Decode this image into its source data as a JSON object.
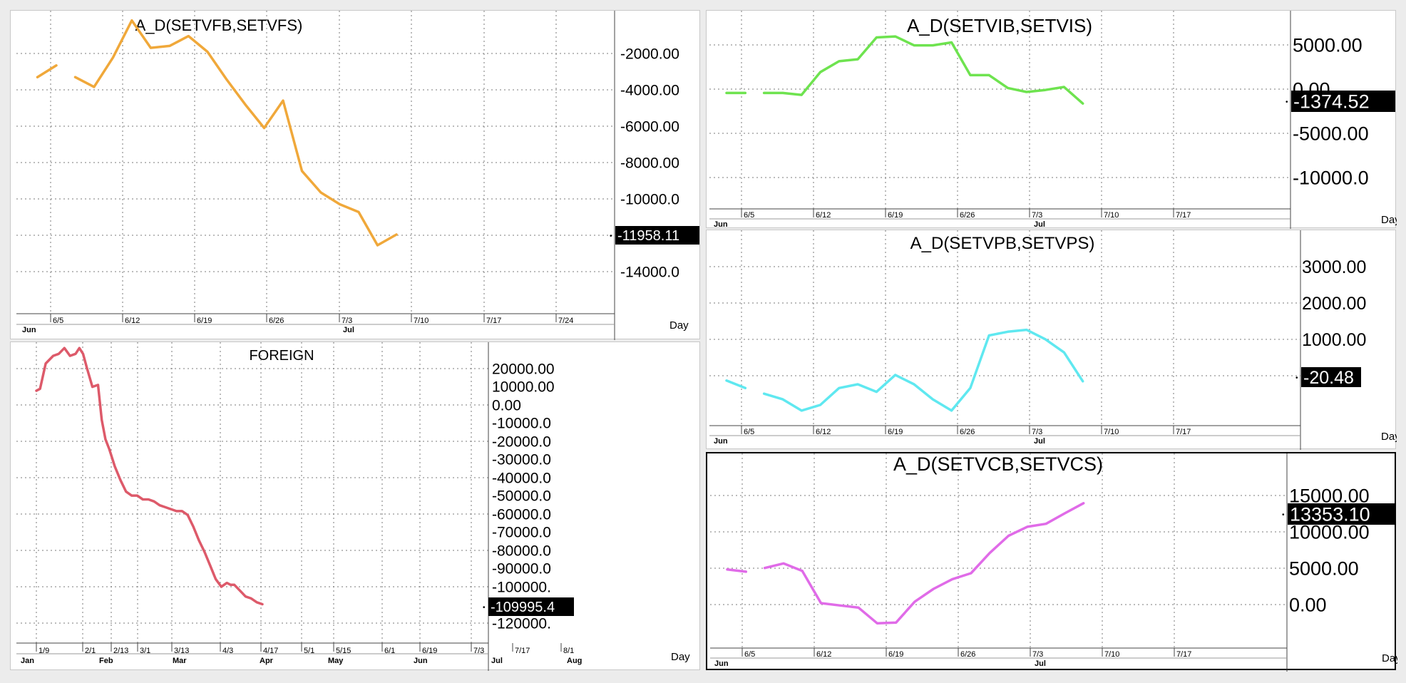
{
  "chart_data": [
    {
      "type": "line",
      "title": "A_D(SETVFB,SETVFS)",
      "color": "#f0a83a",
      "x_period": "Day",
      "x_tick_labels": [
        "6/5",
        "6/12",
        "6/19",
        "6/26",
        "7/3",
        "7/10",
        "7/17",
        "7/24"
      ],
      "x_month_labels": [
        "Jun",
        "Jul"
      ],
      "y_tick_labels": [
        "-2000.00",
        "-4000.00",
        "-6000.00",
        "-8000.00",
        "-10000.0",
        "-14000.0"
      ],
      "ylim": [
        -16000,
        -500
      ],
      "last_value_label": "-11958.11",
      "last_value": -11958.11,
      "series": [
        {
          "segments": [
            {
              "x": [
                0,
                1
              ],
              "values": [
                -3900,
                -3300
              ]
            },
            {
              "x": [
                2,
                3,
                4,
                5,
                6,
                7,
                8,
                9,
                10,
                11,
                12,
                13,
                14,
                15,
                16,
                17,
                18,
                19
              ],
              "values": [
                -3900,
                -4400,
                -2900,
                -1000,
                -2400,
                -2300,
                -1800,
                -2600,
                -4000,
                -5300,
                -6500,
                -5100,
                -8700,
                -9800,
                -10400,
                -10800,
                -12500,
                -11950
              ]
            }
          ]
        }
      ]
    },
    {
      "type": "line",
      "title": "A_D(SETVIB,SETVIS)",
      "color": "#6ee34f",
      "x_period": "Day",
      "x_tick_labels": [
        "6/5",
        "6/12",
        "6/19",
        "6/26",
        "7/3",
        "7/10",
        "7/17"
      ],
      "x_month_labels": [
        "Jun",
        "Jul"
      ],
      "y_tick_labels": [
        "5000.00",
        "0.00",
        "-5000.00",
        "-10000.0"
      ],
      "ylim": [
        -12000,
        8000
      ],
      "last_value_label": "-1374.52",
      "last_value": -1374.52,
      "series": [
        {
          "segments": [
            {
              "x": [
                0,
                1
              ],
              "values": [
                -300,
                -300
              ]
            },
            {
              "x": [
                2,
                3,
                4,
                5,
                6,
                7,
                8,
                9,
                10,
                11,
                12,
                13,
                14,
                15,
                16,
                17,
                18,
                19
              ],
              "values": [
                -300,
                -300,
                -500,
                1800,
                2900,
                3100,
                5300,
                5400,
                4500,
                4500,
                4800,
                1500,
                1500,
                200,
                -200,
                0,
                300,
                -1370
              ]
            }
          ]
        }
      ]
    },
    {
      "type": "line",
      "title": "A_D(SETVPB,SETVPS)",
      "color": "#5fe8f0",
      "x_period": "Day",
      "x_tick_labels": [
        "6/5",
        "6/12",
        "6/19",
        "6/26",
        "7/3",
        "7/10",
        "7/17"
      ],
      "x_month_labels": [
        "Jun",
        "Jul"
      ],
      "y_tick_labels": [
        "3000.00",
        "2000.00",
        "1000.00",
        "0.00"
      ],
      "ylim": [
        -1200,
        4000
      ],
      "last_value_label": "-20.48",
      "last_value": -20.48,
      "series": [
        {
          "segments": [
            {
              "x": [
                0,
                1
              ],
              "values": [
                0,
                -200
              ]
            },
            {
              "x": [
                2,
                3,
                4,
                5,
                6,
                7,
                8,
                9,
                10,
                11,
                12,
                13,
                14,
                15,
                16,
                17,
                18,
                19
              ],
              "values": [
                -350,
                -500,
                -800,
                -650,
                -200,
                -100,
                -300,
                150,
                -100,
                -500,
                -800,
                -200,
                1200,
                1300,
                1350,
                1100,
                750,
                -20
              ]
            }
          ]
        }
      ]
    },
    {
      "type": "line",
      "title": "FOREIGN",
      "color": "#dd5a6a",
      "x_period": "Day",
      "x_tick_labels": [
        "1/9",
        "2/1",
        "2/13",
        "3/1",
        "3/13",
        "4/3",
        "4/17",
        "5/1",
        "5/15",
        "6/1",
        "6/19",
        "7/3",
        "7/17",
        "8/1"
      ],
      "x_month_labels": [
        "Jan",
        "Feb",
        "Mar",
        "Apr",
        "May",
        "Jun",
        "Jul",
        "Aug"
      ],
      "y_tick_labels": [
        "20000.00",
        "10000.00",
        "0.00",
        "-10000.0",
        "-20000.0",
        "-30000.0",
        "-40000.0",
        "-50000.0",
        "-60000.0",
        "-70000.0",
        "-80000.0",
        "-90000.0",
        "-100000.",
        "-120000."
      ],
      "ylim": [
        -130000,
        25000
      ],
      "last_value_label": "-109995.4",
      "last_value": -109995.4,
      "series": [
        {
          "segments": [
            {
              "x": [
                0,
                2,
                5,
                9,
                12,
                15,
                18,
                21,
                23,
                25,
                27,
                30,
                33,
                35,
                37,
                39,
                42,
                45,
                48,
                51,
                54,
                57,
                60,
                63,
                66,
                69,
                72,
                75,
                78,
                81,
                84,
                87,
                90,
                93,
                96,
                99,
                102,
                104,
                106,
                108,
                110,
                112,
                115,
                118,
                121
              ],
              "values": [
                0,
                1000,
                14000,
                18000,
                19000,
                22000,
                18000,
                19000,
                22000,
                19000,
                12000,
                2000,
                3000,
                -15000,
                -25000,
                -30000,
                -39000,
                -46000,
                -52000,
                -54000,
                -54000,
                -56000,
                -56000,
                -57000,
                -59000,
                -60000,
                -61000,
                -62000,
                -62000,
                -64000,
                -70000,
                -77000,
                -83000,
                -90000,
                -97000,
                -101000,
                -99000,
                -100000,
                -100000,
                -102000,
                -104000,
                -106000,
                -107000,
                -109000,
                -110000
              ]
            }
          ]
        }
      ]
    },
    {
      "type": "line",
      "title": "A_D(SETVCB,SETVCS)",
      "color": "#e06be8",
      "x_period": "Day",
      "x_tick_labels": [
        "6/5",
        "6/12",
        "6/19",
        "6/26",
        "7/3",
        "7/10",
        "7/17"
      ],
      "x_month_labels": [
        "Jun",
        "Jul"
      ],
      "y_tick_labels": [
        "15000.00",
        "10000.00",
        "5000.00",
        "0.00"
      ],
      "ylim": [
        -6000,
        20000
      ],
      "last_value_label": "13353.10",
      "last_value": 13353.1,
      "series": [
        {
          "segments": [
            {
              "x": [
                0,
                1
              ],
              "values": [
                4500,
                4200
              ]
            },
            {
              "x": [
                2,
                3,
                4,
                5,
                6,
                7,
                8,
                9,
                10,
                11,
                12,
                13,
                14,
                15,
                16,
                17,
                18,
                19
              ],
              "values": [
                4700,
                5300,
                4300,
                0,
                -300,
                -600,
                -2700,
                -2600,
                200,
                1900,
                3200,
                4000,
                6700,
                9000,
                10200,
                10600,
                12000,
                13350
              ]
            }
          ]
        }
      ]
    }
  ]
}
